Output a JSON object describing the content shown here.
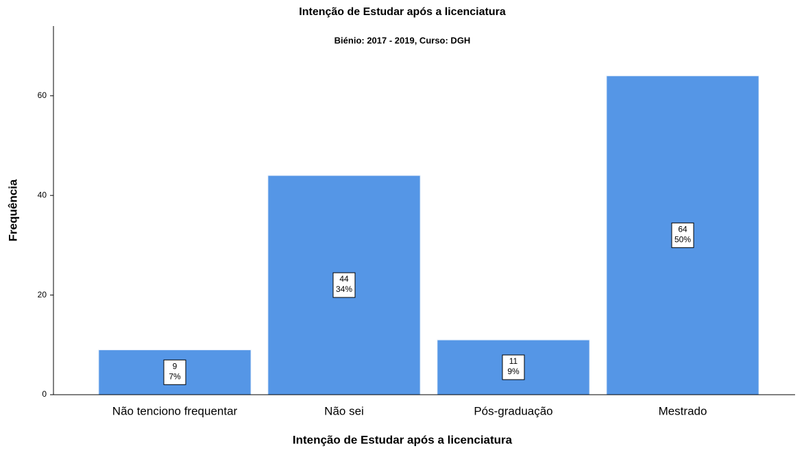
{
  "chart_data": {
    "type": "bar",
    "title": "Intenção de Estudar após a licenciatura",
    "subtitle": "Biénio: 2017 - 2019, Curso: DGH",
    "xlabel": "Intenção de Estudar após a licenciatura",
    "ylabel": "Frequência",
    "categories": [
      "Não tenciono frequentar",
      "Não sei",
      "Pós-graduação",
      "Mestrado"
    ],
    "values": [
      9,
      44,
      11,
      64
    ],
    "percentage_labels": [
      "7%",
      "34%",
      "9%",
      "50%"
    ],
    "color": "#5596e6",
    "ylim": [
      0,
      74
    ],
    "yticks": [
      0,
      20,
      40,
      60
    ],
    "grid": false
  }
}
